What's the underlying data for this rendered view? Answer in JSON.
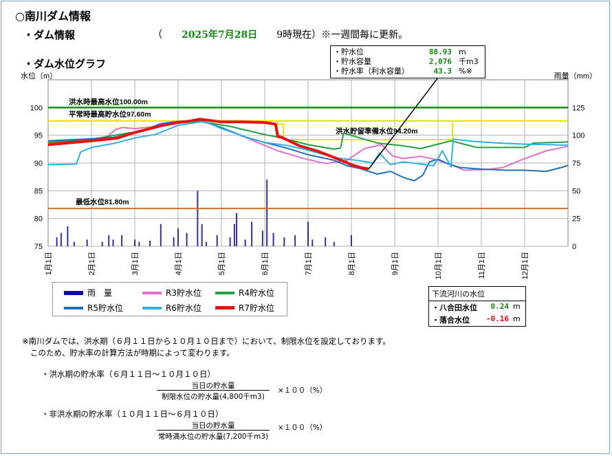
{
  "page": {
    "title": "○南川ダム情報",
    "info_heading": "・ダム情報",
    "asof_open": "（　　",
    "asof_date": "2025年7月28日",
    "asof_close": "　　9時現在）※一週間毎に更新。",
    "graph_heading": "・ダム水位グラフ"
  },
  "callout": {
    "rows": [
      {
        "label": "・貯水位",
        "value": "88.93",
        "unit": "m"
      },
      {
        "label": "・貯水容量",
        "value": "2,076",
        "unit": "千m3"
      },
      {
        "label": "・貯水率（利水容量）",
        "value": "43.3",
        "unit": "%※"
      }
    ]
  },
  "legend": {
    "rain": "雨　量",
    "r3": "R3貯水位",
    "r4": "R4貯水位",
    "r5": "R5貯水位",
    "r6": "R6貯水位",
    "r7": "R7貯水位"
  },
  "downstream": {
    "title": "下流河川の水位",
    "rows": [
      {
        "label": "・八合田水位",
        "value": "0.24",
        "unit": "m"
      },
      {
        "label": "・落合水位",
        "value": "-0.16",
        "unit": "m"
      }
    ]
  },
  "notes": [
    "※南川ダムでは、洪水期（６月１１日から１０月１０日まで）において、制限水位を設定しております。",
    "このため、貯水率の計算方法が時期によって変わります。"
  ],
  "formulas": [
    {
      "title": "・洪水期の貯水率（６月１１日～１０月１０日）",
      "numerator": "当日の貯水量",
      "denominator": "制限水位の貯水量(4,800千m3)",
      "multiplier": "×１００（%）"
    },
    {
      "title": "・非洪水期の貯水率（１０月１１日～６月１０日）",
      "numerator": "当日の貯水量",
      "denominator": "常時満水位の貯水量(7,200千m3)",
      "multiplier": "×１００（%）"
    }
  ],
  "chart_data": {
    "type": "line",
    "ylabel": "水位（m）",
    "y2label": "雨量（mm）",
    "ylim": [
      75,
      105
    ],
    "y2lim": [
      0,
      150
    ],
    "yticks": [
      75,
      80,
      85,
      90,
      95,
      100
    ],
    "y2ticks": [
      0,
      25,
      50,
      75,
      100,
      125
    ],
    "xlim": [
      0,
      12
    ],
    "months": [
      "1月1日",
      "2月1日",
      "3月1日",
      "4月1日",
      "5月1日",
      "6月1日",
      "7月1日",
      "8月1日",
      "9月1日",
      "10月1日",
      "11月1日",
      "12月1日"
    ],
    "reference_lines": [
      {
        "label": "洪水時最高水位100.00m",
        "y": 100.0,
        "color": "#108a10"
      },
      {
        "label": "平常時最高貯水位97.60m",
        "y": 97.6,
        "color": "#e0e000"
      },
      {
        "label": "洪水貯留準備水位94.20m",
        "y": 94.2,
        "color": "#e0e000"
      },
      {
        "label": "最低水位81.80m",
        "y": 81.8,
        "color": "#d07020"
      }
    ],
    "limit_line": [
      [
        0,
        97.6
      ],
      [
        5.3,
        97.6
      ],
      [
        5.3,
        97.0
      ],
      [
        5.43,
        97.0
      ],
      [
        5.43,
        94.2
      ],
      [
        9.33,
        94.2
      ],
      [
        9.33,
        97.6
      ],
      [
        12,
        97.6
      ]
    ],
    "rain": [
      [
        0.2,
        8
      ],
      [
        0.3,
        12
      ],
      [
        0.45,
        18
      ],
      [
        0.6,
        4
      ],
      [
        0.9,
        6
      ],
      [
        1.25,
        4
      ],
      [
        1.4,
        10
      ],
      [
        1.5,
        6
      ],
      [
        1.7,
        10
      ],
      [
        2.0,
        6
      ],
      [
        2.1,
        4
      ],
      [
        2.35,
        5
      ],
      [
        2.6,
        20
      ],
      [
        2.9,
        8
      ],
      [
        3.0,
        16
      ],
      [
        3.2,
        12
      ],
      [
        3.45,
        50
      ],
      [
        3.55,
        20
      ],
      [
        3.65,
        4
      ],
      [
        3.9,
        10
      ],
      [
        4.2,
        8
      ],
      [
        4.3,
        20
      ],
      [
        4.35,
        30
      ],
      [
        4.55,
        6
      ],
      [
        4.7,
        22
      ],
      [
        4.95,
        14
      ],
      [
        5.05,
        60
      ],
      [
        5.2,
        12
      ],
      [
        5.45,
        8
      ],
      [
        5.7,
        10
      ],
      [
        6.0,
        22
      ],
      [
        6.1,
        6
      ],
      [
        6.4,
        8
      ],
      [
        6.6,
        4
      ],
      [
        7.0,
        10
      ]
    ],
    "series": [
      {
        "name": "R3貯水位",
        "color": "#e070c8",
        "width": 2,
        "values": [
          [
            0,
            93.8
          ],
          [
            0.8,
            94.1
          ],
          [
            1.3,
            94.3
          ],
          [
            1.55,
            96.0
          ],
          [
            1.7,
            96.4
          ],
          [
            2.0,
            96.2
          ],
          [
            2.5,
            96.6
          ],
          [
            3.0,
            97.4
          ],
          [
            3.5,
            97.6
          ],
          [
            3.8,
            96.9
          ],
          [
            4.3,
            95.5
          ],
          [
            4.8,
            93.8
          ],
          [
            5.3,
            92.2
          ],
          [
            5.9,
            90.8
          ],
          [
            6.4,
            89.9
          ],
          [
            6.9,
            90.5
          ],
          [
            7.3,
            92.6
          ],
          [
            7.7,
            93.3
          ],
          [
            7.95,
            91.3
          ],
          [
            8.2,
            90.8
          ],
          [
            8.6,
            91.2
          ],
          [
            8.9,
            90.7
          ],
          [
            9.3,
            89.7
          ],
          [
            9.6,
            88.7
          ],
          [
            10.1,
            88.8
          ],
          [
            10.5,
            89.2
          ],
          [
            11.0,
            90.8
          ],
          [
            11.5,
            92.2
          ],
          [
            12,
            93.0
          ]
        ]
      },
      {
        "name": "R4貯水位",
        "color": "#20a040",
        "width": 2,
        "values": [
          [
            0,
            93.7
          ],
          [
            1.0,
            94.3
          ],
          [
            2.0,
            95.6
          ],
          [
            2.8,
            97.1
          ],
          [
            3.5,
            97.5
          ],
          [
            4.2,
            96.6
          ],
          [
            4.9,
            95.3
          ],
          [
            5.4,
            94.5
          ],
          [
            6.0,
            93.3
          ],
          [
            6.6,
            92.5
          ],
          [
            6.75,
            92.7
          ],
          [
            6.82,
            95.4
          ],
          [
            7.2,
            94.5
          ],
          [
            7.6,
            93.6
          ],
          [
            8.2,
            93.1
          ],
          [
            8.6,
            92.6
          ],
          [
            9.3,
            94.0
          ],
          [
            9.9,
            92.8
          ],
          [
            10.6,
            92.8
          ],
          [
            11.0,
            92.8
          ],
          [
            11.2,
            93.6
          ],
          [
            12,
            93.8
          ]
        ]
      },
      {
        "name": "R5貯水位",
        "color": "#2070b8",
        "width": 2,
        "values": [
          [
            0,
            94.0
          ],
          [
            0.8,
            94.3
          ],
          [
            1.5,
            94.6
          ],
          [
            2.1,
            95.6
          ],
          [
            2.6,
            97.1
          ],
          [
            3.0,
            97.5
          ],
          [
            3.5,
            97.7
          ],
          [
            4.0,
            96.4
          ],
          [
            4.5,
            94.8
          ],
          [
            5.0,
            93.7
          ],
          [
            5.5,
            92.7
          ],
          [
            6.0,
            91.5
          ],
          [
            6.6,
            90.5
          ],
          [
            6.9,
            89.5
          ],
          [
            7.2,
            89.0
          ],
          [
            7.6,
            88.0
          ],
          [
            7.9,
            88.5
          ],
          [
            8.2,
            87.4
          ],
          [
            8.45,
            86.8
          ],
          [
            8.65,
            87.8
          ],
          [
            8.8,
            90.2
          ],
          [
            9.0,
            90.7
          ],
          [
            9.25,
            89.8
          ],
          [
            9.5,
            89.2
          ],
          [
            10.0,
            88.9
          ],
          [
            10.6,
            88.7
          ],
          [
            11.0,
            88.7
          ],
          [
            11.5,
            88.5
          ],
          [
            11.9,
            89.3
          ],
          [
            12,
            89.6
          ]
        ]
      },
      {
        "name": "R6貯水位",
        "color": "#30b0e0",
        "width": 2,
        "values": [
          [
            0,
            89.7
          ],
          [
            0.65,
            89.8
          ],
          [
            0.75,
            92.0
          ],
          [
            1.0,
            92.8
          ],
          [
            1.5,
            93.5
          ],
          [
            2.0,
            94.5
          ],
          [
            2.5,
            95.2
          ],
          [
            3.0,
            96.8
          ],
          [
            3.6,
            97.5
          ],
          [
            4.0,
            96.2
          ],
          [
            4.6,
            94.6
          ],
          [
            5.0,
            93.7
          ],
          [
            5.5,
            93.2
          ],
          [
            6.0,
            92.3
          ],
          [
            6.6,
            91.0
          ],
          [
            7.2,
            90.4
          ],
          [
            7.5,
            90.0
          ],
          [
            7.65,
            91.8
          ],
          [
            7.9,
            89.7
          ],
          [
            8.2,
            90.2
          ],
          [
            8.7,
            89.7
          ],
          [
            8.9,
            89.5
          ],
          [
            9.1,
            92.2
          ],
          [
            9.3,
            89.3
          ],
          [
            9.35,
            94.3
          ],
          [
            9.8,
            93.9
          ],
          [
            10.4,
            93.6
          ],
          [
            11.0,
            93.4
          ],
          [
            11.6,
            93.3
          ],
          [
            12,
            93.2
          ]
        ]
      },
      {
        "name": "R7貯水位",
        "color": "#e81010",
        "width": 4,
        "values": [
          [
            0,
            93.3
          ],
          [
            1.0,
            94.0
          ],
          [
            1.6,
            94.5
          ],
          [
            2.0,
            95.5
          ],
          [
            2.6,
            96.7
          ],
          [
            3.0,
            97.3
          ],
          [
            3.3,
            97.6
          ],
          [
            3.5,
            97.9
          ],
          [
            4.0,
            97.4
          ],
          [
            4.5,
            97.4
          ],
          [
            5.0,
            97.3
          ],
          [
            5.25,
            97.0
          ],
          [
            5.3,
            94.8
          ],
          [
            5.4,
            94.6
          ],
          [
            5.8,
            93.1
          ],
          [
            6.2,
            92.2
          ],
          [
            6.6,
            91.0
          ],
          [
            7.0,
            89.7
          ],
          [
            7.2,
            89.2
          ],
          [
            7.4,
            88.93
          ]
        ]
      }
    ]
  }
}
